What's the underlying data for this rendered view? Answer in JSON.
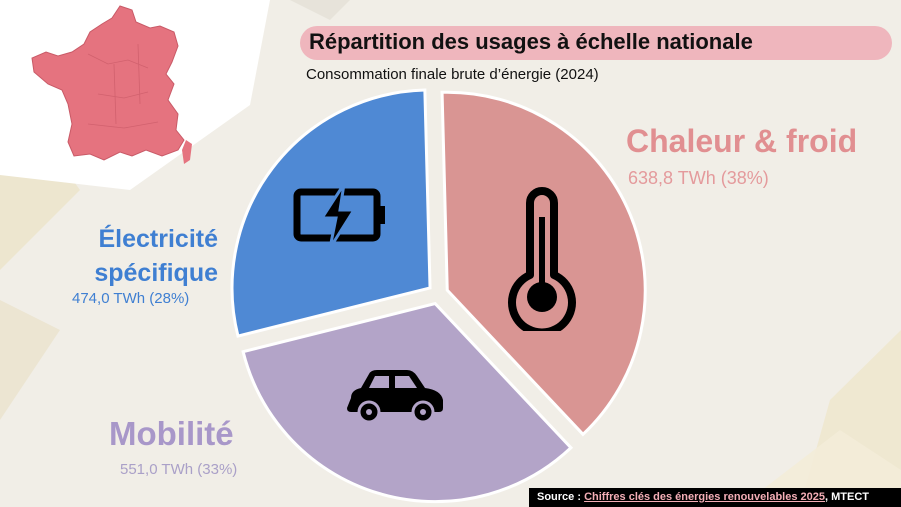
{
  "header": {
    "title": "Répartition des usages à échelle nationale",
    "subtitle": "Consommation finale brute d’énergie (2024)"
  },
  "chart_data": {
    "type": "pie",
    "title": "Répartition des usages à échelle nationale",
    "subtitle": "Consommation finale brute d’énergie (2024)",
    "unit": "TWh",
    "slices": [
      {
        "name": "Chaleur & froid",
        "value": 638.8,
        "percent": 38,
        "label": "638,8 TWh (38%)",
        "color": "#d99593",
        "icon": "thermometer-icon"
      },
      {
        "name": "Mobilité",
        "value": 551.0,
        "percent": 33,
        "label": "551,0 TWh (33%)",
        "color": "#b3a4c8",
        "icon": "car-icon"
      },
      {
        "name": "Électricité spécifique",
        "value": 474.0,
        "percent": 28,
        "label": "474,0 TWh (28%)",
        "color": "#4f89d4",
        "icon": "battery-charging-icon"
      }
    ],
    "legend": "none"
  },
  "labels": {
    "heat": {
      "name": "Chaleur & froid",
      "value": "638,8 TWh (38%)"
    },
    "elec": {
      "line1": "Électricité",
      "line2": "spécifique",
      "value": "474,0 TWh (28%)"
    },
    "mob": {
      "name": "Mobilité",
      "value": "551,0 TWh (33%)"
    }
  },
  "source": {
    "prefix": "Source : ",
    "link_text": "Chiffres clés des énergies renouvelables 2025",
    "suffix": ", MTECT"
  },
  "decor": {
    "map_icon": "france-map-icon",
    "map_color": "#e5737f"
  }
}
